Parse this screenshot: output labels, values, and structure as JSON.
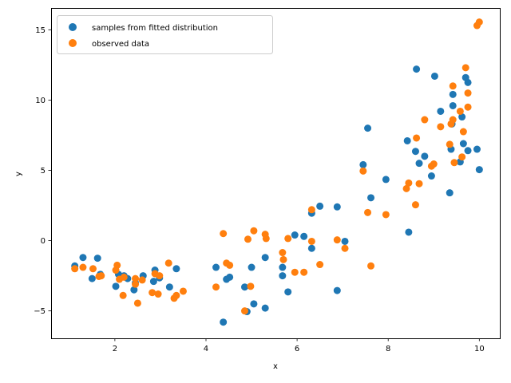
{
  "chart_data": {
    "type": "scatter",
    "xlabel": "x",
    "ylabel": "y",
    "xlim": [
      0.6,
      10.45
    ],
    "ylim": [
      -6.95,
      16.55
    ],
    "xticks": [
      2,
      4,
      6,
      8,
      10
    ],
    "yticks": [
      -5,
      0,
      5,
      10,
      15
    ],
    "grid": false,
    "legend_position": "top-left",
    "series": [
      {
        "name": "samples from fitted distribution",
        "color": "#1f77b4",
        "points": [
          [
            1.12,
            -1.8
          ],
          [
            1.3,
            -1.2
          ],
          [
            1.5,
            -2.7
          ],
          [
            1.62,
            -1.25
          ],
          [
            1.68,
            -2.4
          ],
          [
            2.02,
            -3.25
          ],
          [
            2.08,
            -2.4
          ],
          [
            2.18,
            -2.55
          ],
          [
            2.2,
            -2.5
          ],
          [
            2.28,
            -2.7
          ],
          [
            2.42,
            -3.5
          ],
          [
            2.45,
            -3.0
          ],
          [
            2.62,
            -2.5
          ],
          [
            2.85,
            -2.9
          ],
          [
            2.88,
            -2.1
          ],
          [
            2.98,
            -2.65
          ],
          [
            3.2,
            -3.3
          ],
          [
            3.35,
            -2.0
          ],
          [
            4.22,
            -1.9
          ],
          [
            4.38,
            -5.8
          ],
          [
            4.45,
            -2.75
          ],
          [
            4.52,
            -2.6
          ],
          [
            4.85,
            -3.3
          ],
          [
            4.9,
            -5.05
          ],
          [
            5.0,
            -1.9
          ],
          [
            5.05,
            -4.5
          ],
          [
            5.3,
            -1.2
          ],
          [
            5.3,
            -4.8
          ],
          [
            5.68,
            -2.5
          ],
          [
            5.68,
            -1.9
          ],
          [
            5.8,
            -3.65
          ],
          [
            5.95,
            0.4
          ],
          [
            6.15,
            0.3
          ],
          [
            6.32,
            1.95
          ],
          [
            6.32,
            -0.55
          ],
          [
            6.5,
            2.45
          ],
          [
            6.88,
            2.4
          ],
          [
            6.88,
            -3.55
          ],
          [
            7.05,
            -0.05
          ],
          [
            7.45,
            5.4
          ],
          [
            7.55,
            8.0
          ],
          [
            7.62,
            3.05
          ],
          [
            7.95,
            4.35
          ],
          [
            8.42,
            7.1
          ],
          [
            8.45,
            0.6
          ],
          [
            8.6,
            6.35
          ],
          [
            8.62,
            12.2
          ],
          [
            8.68,
            5.5
          ],
          [
            8.8,
            6.0
          ],
          [
            8.95,
            4.6
          ],
          [
            9.02,
            11.7
          ],
          [
            9.15,
            9.2
          ],
          [
            9.35,
            3.4
          ],
          [
            9.38,
            6.5
          ],
          [
            9.4,
            8.3
          ],
          [
            9.42,
            10.4
          ],
          [
            9.42,
            9.6
          ],
          [
            9.58,
            5.6
          ],
          [
            9.62,
            8.8
          ],
          [
            9.65,
            6.9
          ],
          [
            9.7,
            11.6
          ],
          [
            9.75,
            11.25
          ],
          [
            9.75,
            6.4
          ],
          [
            9.95,
            6.5
          ],
          [
            10.0,
            5.05
          ]
        ]
      },
      {
        "name": "observed data",
        "color": "#ff7f0e",
        "points": [
          [
            1.12,
            -2.0
          ],
          [
            1.3,
            -1.9
          ],
          [
            1.52,
            -2.0
          ],
          [
            1.65,
            -2.55
          ],
          [
            1.7,
            -2.5
          ],
          [
            2.02,
            -2.1
          ],
          [
            2.05,
            -1.75
          ],
          [
            2.1,
            -2.75
          ],
          [
            2.18,
            -3.9
          ],
          [
            2.2,
            -2.6
          ],
          [
            2.45,
            -2.7
          ],
          [
            2.45,
            -3.1
          ],
          [
            2.5,
            -4.45
          ],
          [
            2.6,
            -2.8
          ],
          [
            2.82,
            -3.7
          ],
          [
            2.88,
            -2.35
          ],
          [
            2.95,
            -3.8
          ],
          [
            2.98,
            -2.5
          ],
          [
            3.18,
            -1.6
          ],
          [
            3.3,
            -4.1
          ],
          [
            3.35,
            -3.9
          ],
          [
            3.5,
            -3.6
          ],
          [
            4.22,
            -3.3
          ],
          [
            4.38,
            0.5
          ],
          [
            4.45,
            -1.6
          ],
          [
            4.52,
            -1.75
          ],
          [
            4.85,
            -5.0
          ],
          [
            4.92,
            0.1
          ],
          [
            4.98,
            -3.25
          ],
          [
            5.05,
            0.7
          ],
          [
            5.3,
            0.45
          ],
          [
            5.32,
            0.15
          ],
          [
            5.68,
            -0.85
          ],
          [
            5.7,
            -1.35
          ],
          [
            5.8,
            0.15
          ],
          [
            5.95,
            -2.25
          ],
          [
            6.15,
            -2.25
          ],
          [
            6.32,
            2.2
          ],
          [
            6.32,
            -0.05
          ],
          [
            6.5,
            -1.7
          ],
          [
            6.88,
            0.05
          ],
          [
            7.05,
            -0.55
          ],
          [
            7.45,
            4.95
          ],
          [
            7.55,
            2.0
          ],
          [
            7.62,
            -1.8
          ],
          [
            7.95,
            1.85
          ],
          [
            8.4,
            3.7
          ],
          [
            8.45,
            4.1
          ],
          [
            8.6,
            2.55
          ],
          [
            8.62,
            7.3
          ],
          [
            8.68,
            4.05
          ],
          [
            8.8,
            8.6
          ],
          [
            8.95,
            5.3
          ],
          [
            9.0,
            5.45
          ],
          [
            9.15,
            8.1
          ],
          [
            9.35,
            6.85
          ],
          [
            9.38,
            8.3
          ],
          [
            9.42,
            11.0
          ],
          [
            9.42,
            8.6
          ],
          [
            9.45,
            5.55
          ],
          [
            9.58,
            9.2
          ],
          [
            9.62,
            5.95
          ],
          [
            9.65,
            7.75
          ],
          [
            9.7,
            12.3
          ],
          [
            9.75,
            10.5
          ],
          [
            9.75,
            9.5
          ],
          [
            9.95,
            15.3
          ],
          [
            10.0,
            15.55
          ]
        ]
      }
    ]
  }
}
